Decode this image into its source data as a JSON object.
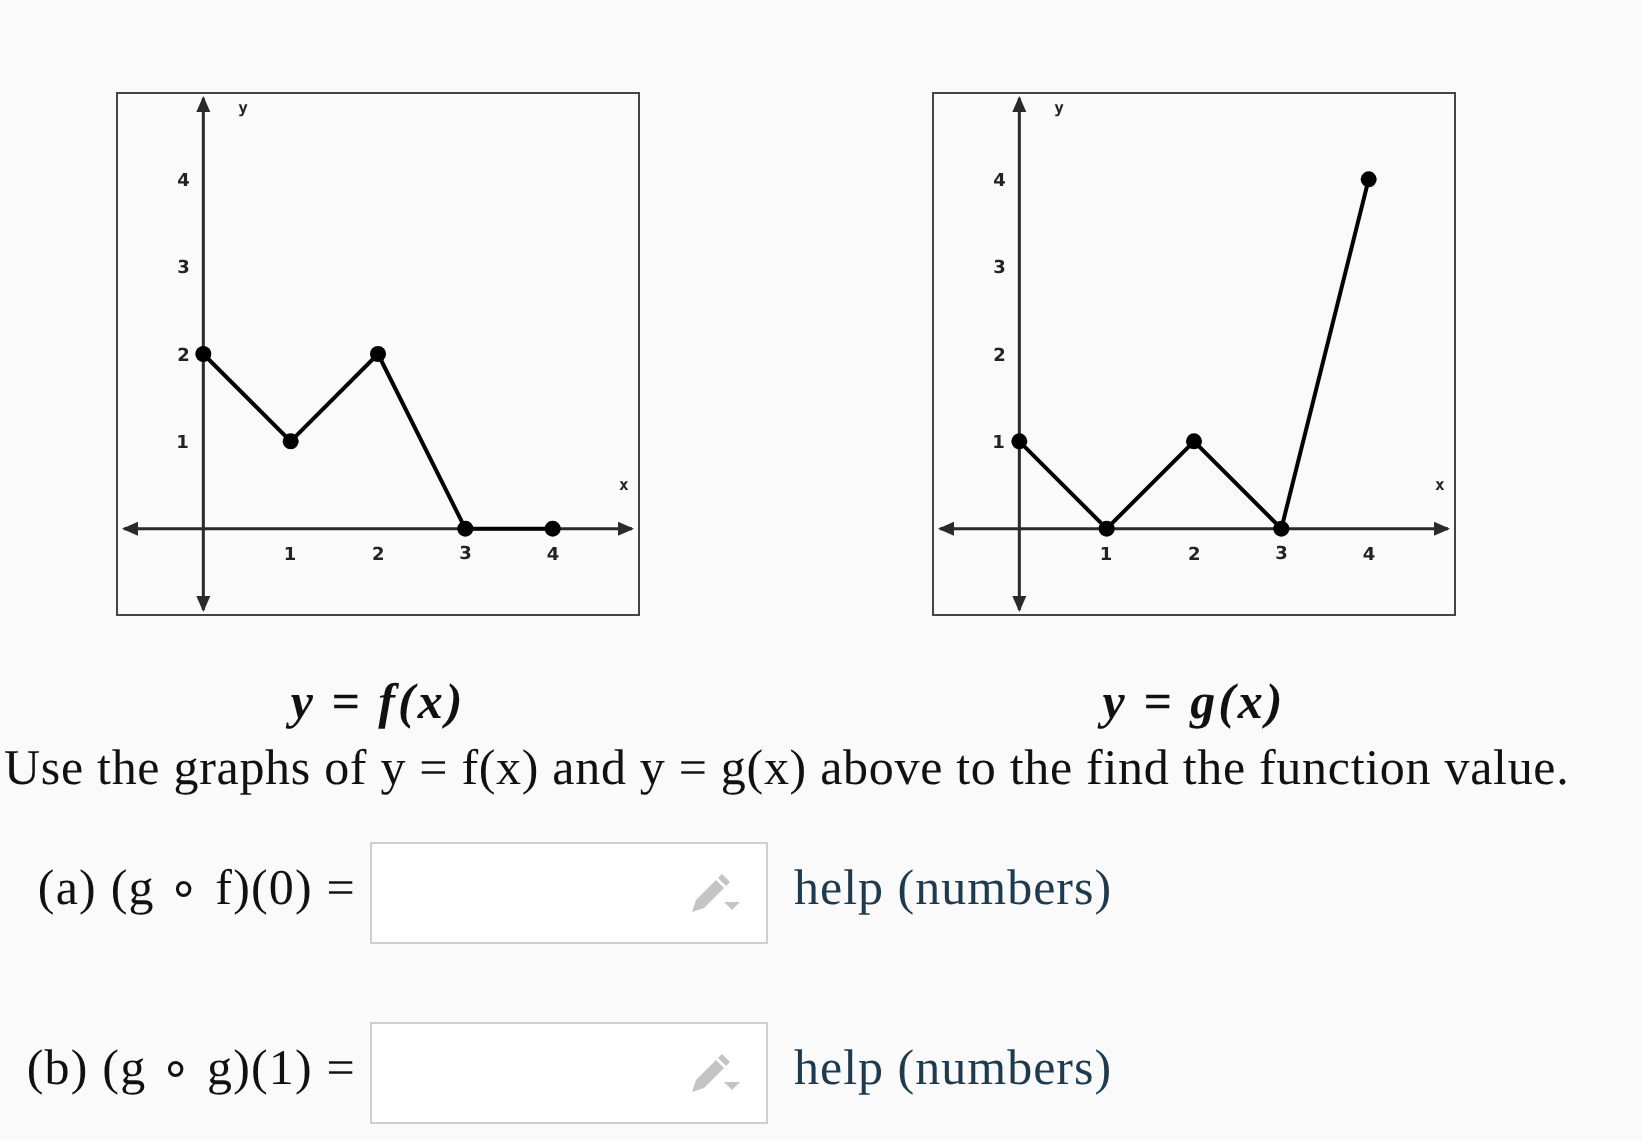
{
  "chart_data": [
    {
      "type": "line",
      "title": "y = f(x)",
      "xlabel": "x",
      "ylabel": "y",
      "x": [
        0,
        1,
        2,
        3,
        4
      ],
      "values": [
        2,
        1,
        2,
        0,
        0
      ],
      "color": "#000000",
      "xlim": [
        -1,
        5
      ],
      "ylim": [
        -1,
        5
      ],
      "xticks": [
        1,
        2,
        3,
        4
      ],
      "yticks": [
        1,
        2,
        3,
        4
      ],
      "marker": "circle"
    },
    {
      "type": "line",
      "title": "y = g(x)",
      "xlabel": "x",
      "ylabel": "y",
      "x": [
        0,
        1,
        2,
        3,
        4
      ],
      "values": [
        1,
        0,
        1,
        0,
        4
      ],
      "color": "#000000",
      "xlim": [
        -1,
        5
      ],
      "ylim": [
        -1,
        5
      ],
      "xticks": [
        1,
        2,
        3,
        4
      ],
      "yticks": [
        1,
        2,
        3,
        4
      ],
      "marker": "circle"
    },
    {
      "type": "other",
      "annotations": [
        "Use the graphs of y = f(x) and y = g(x) above to the find the function value.",
        "(a) (g ∘ f)(0) =",
        "help (numbers)",
        "(b) (g ∘ g)(1) =",
        "help (numbers)"
      ]
    }
  ]
}
